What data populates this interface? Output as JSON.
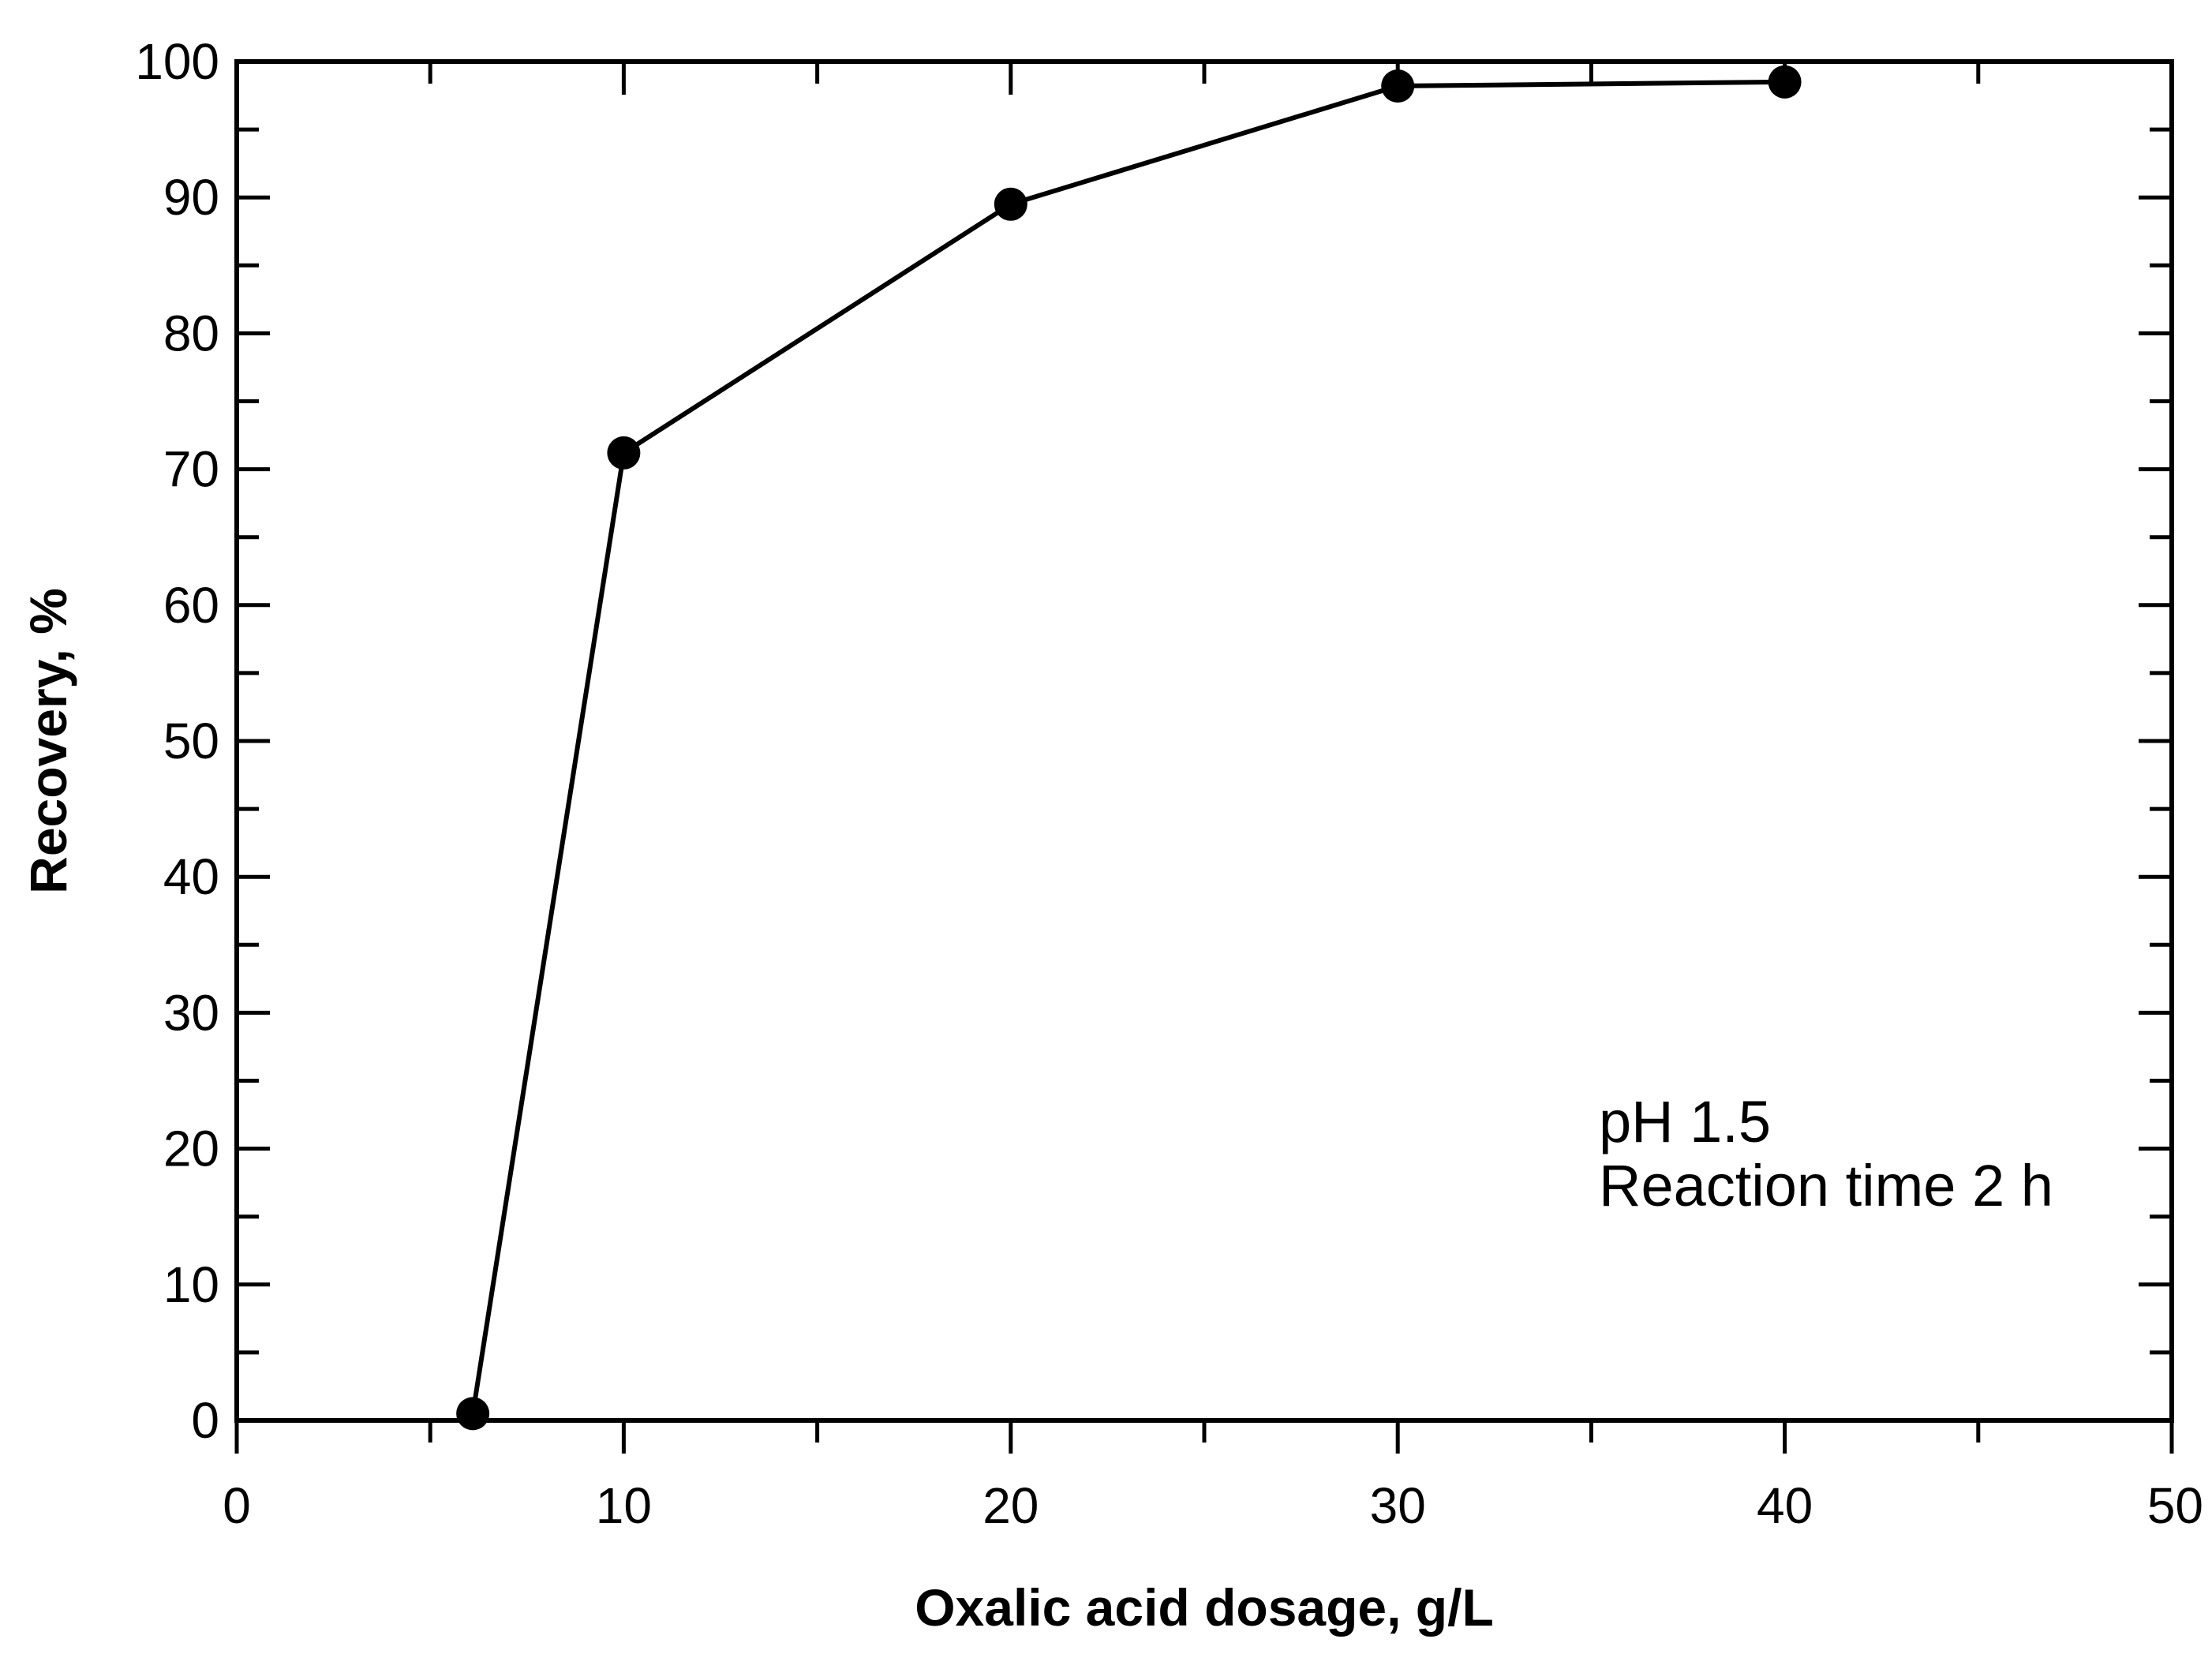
{
  "chart_data": {
    "type": "line",
    "title": "",
    "xlabel": "Oxalic acid dosage, g/L",
    "ylabel": "Recovery, %",
    "xlim": [
      0,
      50
    ],
    "ylim": [
      0,
      100
    ],
    "x_ticks": [
      0,
      10,
      20,
      30,
      40,
      50
    ],
    "x_minor_step": 5,
    "y_ticks": [
      0,
      10,
      20,
      30,
      40,
      50,
      60,
      70,
      80,
      90,
      100
    ],
    "y_minor_step": 5,
    "grid": false,
    "series": [
      {
        "x": [
          6.1,
          10,
          20,
          30,
          40
        ],
        "y": [
          0.5,
          71.2,
          89.5,
          98.2,
          98.5
        ],
        "marker": "filled-circle",
        "color": "#000000"
      }
    ],
    "annotations": [
      "pH 1.5",
      "Reaction time 2 h"
    ]
  }
}
